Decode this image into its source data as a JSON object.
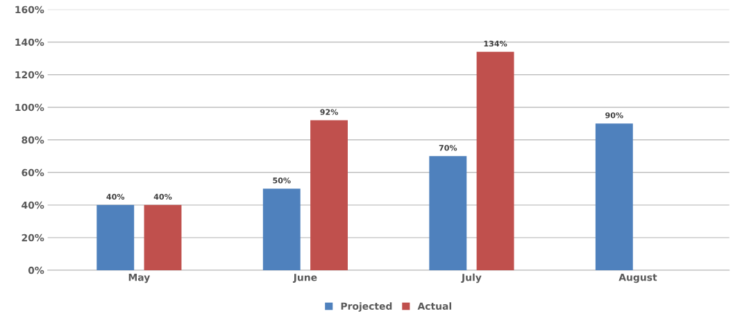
{
  "chart_data": {
    "type": "bar",
    "categories": [
      "May",
      "June",
      "July",
      "August"
    ],
    "series": [
      {
        "name": "Projected",
        "color": "#4f81bd",
        "values": [
          40,
          50,
          70,
          90
        ],
        "value_labels": [
          "40%",
          "50%",
          "70%",
          "90%"
        ]
      },
      {
        "name": "Actual",
        "color": "#c0504d",
        "values": [
          40,
          92,
          134,
          null
        ],
        "value_labels": [
          "40%",
          "92%",
          "134%",
          null
        ]
      }
    ],
    "ylim": [
      0,
      160
    ],
    "yticks": [
      {
        "value": 0,
        "label": "0%"
      },
      {
        "value": 20,
        "label": "20%"
      },
      {
        "value": 40,
        "label": "40%"
      },
      {
        "value": 60,
        "label": "60%"
      },
      {
        "value": 80,
        "label": "80%"
      },
      {
        "value": 100,
        "label": "100%"
      },
      {
        "value": 120,
        "label": "120%"
      },
      {
        "value": 140,
        "label": "140%"
      },
      {
        "value": 160,
        "label": "160%"
      }
    ],
    "grid": "y",
    "legend": "bottom"
  }
}
